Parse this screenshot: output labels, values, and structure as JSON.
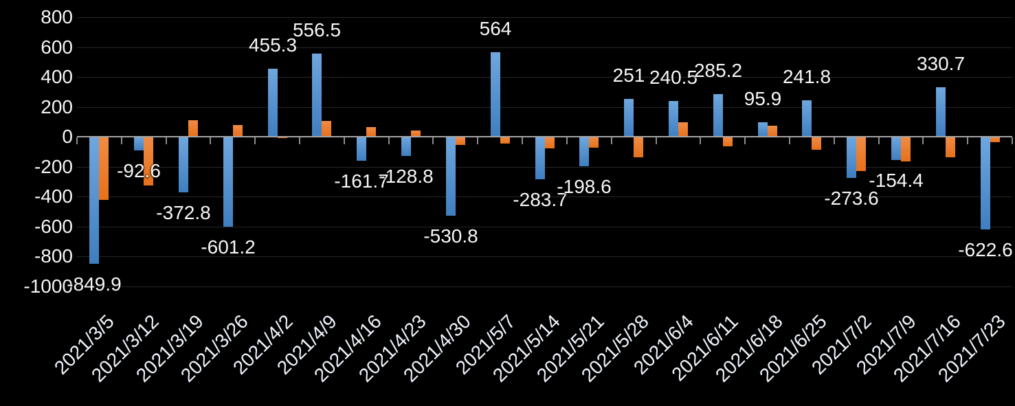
{
  "chart_data": {
    "type": "bar",
    "title": "",
    "legend": "none",
    "background": "#000000",
    "grid": true,
    "categories": [
      "2021/3/5",
      "2021/3/12",
      "2021/3/19",
      "2021/3/26",
      "2021/4/2",
      "2021/4/9",
      "2021/4/16",
      "2021/4/23",
      "2021/4/30",
      "2021/5/7",
      "2021/5/14",
      "2021/5/21",
      "2021/5/28",
      "2021/6/4",
      "2021/6/11",
      "2021/6/18",
      "2021/6/25",
      "2021/7/2",
      "2021/7/9",
      "2021/7/16",
      "2021/7/23"
    ],
    "series": [
      {
        "name": "Series 1",
        "color": "#5B9BD5",
        "gradient": [
          "#6FA7DE",
          "#3F7EC0"
        ],
        "values": [
          -849.9,
          -92.6,
          -372.8,
          -601.2,
          455.3,
          556.5,
          -161.7,
          -128.8,
          -530.8,
          564,
          -283.7,
          -198.6,
          251,
          240.5,
          285.2,
          95.9,
          241.8,
          -273.6,
          -154.4,
          330.7,
          -622.6
        ],
        "data_labels": [
          "-849.9",
          "-92.6",
          "-372.8",
          "-601.2",
          "455.3",
          "556.5",
          "-161.7",
          "-128.8",
          "-530.8",
          "564",
          "-283.7",
          "-198.6",
          "251",
          "240.5",
          "285.2",
          "95.9",
          "241.8",
          "-273.6",
          "-154.4",
          "330.7",
          "-622.6"
        ]
      },
      {
        "name": "Series 2",
        "color": "#ED7D31",
        "gradient": [
          "#F08C46",
          "#E7701A"
        ],
        "values": [
          -425,
          -325,
          112,
          78,
          -6,
          105,
          64,
          42,
          -56,
          -45,
          -76,
          -75,
          -139,
          95,
          -66,
          73,
          -86,
          -230,
          -165,
          -140,
          -38
        ],
        "data_labels": []
      }
    ],
    "y_axis": {
      "min": -1000,
      "max": 800,
      "step": 200,
      "tick_labels": [
        "800",
        "600",
        "400",
        "200",
        "0",
        "-200",
        "-400",
        "-600",
        "-800",
        "-1000"
      ]
    },
    "x_axis": {
      "label_rotation_deg": -45
    }
  }
}
